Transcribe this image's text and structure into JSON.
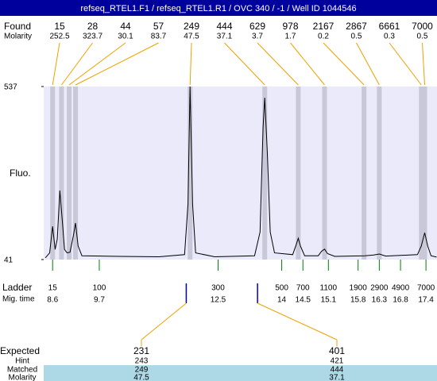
{
  "header": {
    "title": "refseq_RTEL1.F1 / refseq_RTEL1.R1 / OVC 340 / -1 / Well ID 1044546"
  },
  "chart_data": {
    "type": "electropherogram",
    "ylabel": "Fluo.",
    "ylim": [
      41,
      537
    ],
    "yticks": [
      41,
      537
    ],
    "xlim": [
      8.39,
      17.66
    ],
    "line_color": "#000000",
    "plot_color": "#eaeafb",
    "band_color": "#c8c8d8",
    "connector_color": "#f0a000",
    "found": {
      "label": "Found",
      "molarity_label": "Molarity",
      "sizes": [
        15,
        28,
        44,
        57,
        249,
        444,
        629,
        978,
        2167,
        2867,
        6661,
        7000
      ],
      "molarities": [
        252.5,
        323.7,
        30.1,
        83.7,
        47.5,
        37.1,
        3.7,
        1.7,
        0.2,
        0.5,
        0.3,
        0.5
      ],
      "times": [
        8.6,
        8.81,
        8.99,
        9.14,
        11.84,
        13.6,
        14.39,
        15.01,
        15.94,
        16.3,
        17.29,
        17.37
      ]
    },
    "trace": {
      "x": [
        8.43,
        8.53,
        8.6,
        8.66,
        8.71,
        8.77,
        8.83,
        8.88,
        8.94,
        9.01,
        9.09,
        9.14,
        9.2,
        9.29,
        10.17,
        11.11,
        11.71,
        11.79,
        11.84,
        11.9,
        11.97,
        12.42,
        13.36,
        13.49,
        13.56,
        13.6,
        13.66,
        13.73,
        13.83,
        14.26,
        14.33,
        14.39,
        14.44,
        14.54,
        14.86,
        14.94,
        15.01,
        15.08,
        15.25,
        15.96,
        16.17,
        16.3,
        16.45,
        17.2,
        17.29,
        17.37,
        17.44,
        17.52,
        17.65
      ],
      "values": [
        46,
        60,
        136,
        70,
        100,
        239,
        150,
        70,
        60,
        62,
        110,
        146,
        80,
        52,
        50,
        49,
        55,
        200,
        537,
        200,
        60,
        49,
        52,
        120,
        420,
        505,
        350,
        120,
        60,
        55,
        80,
        102,
        80,
        52,
        52,
        65,
        71,
        58,
        50,
        52,
        54,
        57,
        51,
        55,
        80,
        118,
        80,
        52,
        48
      ]
    },
    "ladder": {
      "label": "Ladder",
      "time_label": "Mig. time",
      "color": "#008000",
      "sizes": [
        15,
        100,
        300,
        500,
        700,
        1100,
        1900,
        2900,
        4900,
        7000
      ],
      "times": [
        8.6,
        9.7,
        12.5,
        14,
        14.5,
        15.1,
        15.8,
        16.3,
        16.8,
        17.4
      ]
    },
    "expected": {
      "label": "Expected",
      "hint_label": "Hint",
      "matched_label": "Matched",
      "molarity_label": "Molarity",
      "marker_color": "#0000c0",
      "row_color": "#add8e6",
      "times": [
        11.75,
        13.43
      ],
      "sizes": [
        231,
        401
      ],
      "hints": [
        243,
        421
      ],
      "matched": [
        249,
        444
      ],
      "molarities": [
        47.5,
        37.1
      ]
    }
  }
}
